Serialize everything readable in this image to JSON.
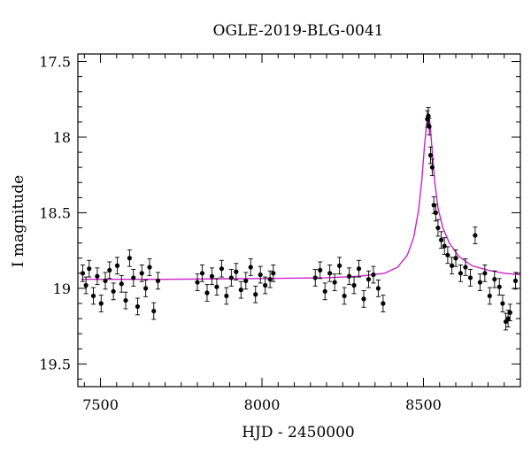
{
  "chart_data": {
    "type": "scatter",
    "title": "OGLE-2019-BLG-0041",
    "xlabel": "HJD - 2450000",
    "ylabel": "I magnitude",
    "xlim": [
      7430,
      8800
    ],
    "ylim": [
      19.65,
      17.45
    ],
    "y_inverted": true,
    "xticks": [
      7500,
      8000,
      8500
    ],
    "xtick_labels": [
      "7500",
      "8000",
      "8500"
    ],
    "yticks": [
      17.5,
      18,
      18.5,
      19,
      19.5
    ],
    "ytick_labels": [
      "17.5",
      "18",
      "18.5",
      "19",
      "19.5"
    ],
    "grid": false,
    "legend": "none",
    "colors": {
      "data": "#000000",
      "model": "#cc22cc"
    },
    "model": {
      "name": "",
      "description_free": true,
      "baseline_mag": 18.94,
      "peak_mag": 17.84,
      "peak_time": 8515,
      "x": [
        7440,
        7700,
        8000,
        8200,
        8300,
        8380,
        8420,
        8450,
        8470,
        8485,
        8495,
        8503,
        8508,
        8512,
        8515,
        8518,
        8522,
        8528,
        8535,
        8545,
        8560,
        8580,
        8610,
        8650,
        8700,
        8750,
        8800
      ],
      "y": [
        18.94,
        18.94,
        18.935,
        18.93,
        18.92,
        18.9,
        18.86,
        18.78,
        18.66,
        18.48,
        18.28,
        18.06,
        17.95,
        17.87,
        17.84,
        17.87,
        17.96,
        18.12,
        18.3,
        18.47,
        18.6,
        18.7,
        18.79,
        18.85,
        18.88,
        18.9,
        18.91
      ]
    },
    "observations": {
      "error_bar_mag": 0.055,
      "seasons": [
        {
          "x": [
            7445,
            7455,
            7465,
            7478,
            7490,
            7502,
            7515,
            7528,
            7540,
            7552,
            7565,
            7578,
            7590,
            7602,
            7615,
            7628,
            7640,
            7652,
            7665,
            7678
          ],
          "y": [
            18.9,
            18.98,
            18.87,
            19.05,
            18.92,
            19.1,
            18.95,
            18.88,
            19.02,
            18.85,
            18.97,
            19.08,
            18.8,
            18.93,
            19.12,
            18.9,
            19.0,
            18.86,
            19.15,
            18.95
          ]
        },
        {
          "x": [
            7800,
            7815,
            7830,
            7845,
            7860,
            7875,
            7890,
            7905,
            7920,
            7935,
            7950,
            7965,
            7980,
            7995,
            8010,
            8025,
            8035
          ],
          "y": [
            18.96,
            18.9,
            19.03,
            18.92,
            18.99,
            18.87,
            19.05,
            18.93,
            18.89,
            19.01,
            18.95,
            18.86,
            19.04,
            18.91,
            18.98,
            18.94,
            18.9
          ]
        },
        {
          "x": [
            8165,
            8180,
            8195,
            8210,
            8225,
            8240,
            8255,
            8270,
            8285,
            8300,
            8315,
            8330,
            8345,
            8360,
            8375
          ],
          "y": [
            18.93,
            18.88,
            19.02,
            18.9,
            18.96,
            18.85,
            19.05,
            18.92,
            18.98,
            18.87,
            19.07,
            18.94,
            18.91,
            19.0,
            19.1
          ]
        },
        {
          "x": [
            8512,
            8515,
            8518,
            8522,
            8527,
            8532,
            8538,
            8545,
            8555,
            8565,
            8575,
            8588,
            8600,
            8615,
            8630,
            8645,
            8660,
            8675,
            8690,
            8705,
            8720,
            8735,
            8745,
            8755,
            8762,
            8768,
            8785
          ],
          "y": [
            17.88,
            17.86,
            17.93,
            18.12,
            18.2,
            18.45,
            18.5,
            18.6,
            18.68,
            18.72,
            18.78,
            18.85,
            18.8,
            18.9,
            18.86,
            18.93,
            18.65,
            18.96,
            18.9,
            19.05,
            18.94,
            18.99,
            19.1,
            19.22,
            19.2,
            19.16,
            18.95
          ]
        }
      ]
    }
  }
}
